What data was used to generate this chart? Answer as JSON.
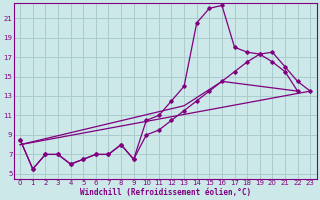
{
  "bg_color": "#cce8e8",
  "grid_color": "#aacccc",
  "line_color": "#800080",
  "xlim": [
    -0.5,
    23.5
  ],
  "ylim": [
    4.5,
    22.5
  ],
  "yticks": [
    5,
    7,
    9,
    11,
    13,
    15,
    17,
    19,
    21
  ],
  "xticks": [
    0,
    1,
    2,
    3,
    4,
    5,
    6,
    7,
    8,
    9,
    10,
    11,
    12,
    13,
    14,
    15,
    16,
    17,
    18,
    19,
    20,
    21,
    22,
    23
  ],
  "xlabel": "Windchill (Refroidissement éolien,°C)",
  "line1_x": [
    0,
    1,
    2,
    3,
    4,
    5,
    6,
    7,
    8,
    9,
    10,
    11,
    12,
    13,
    14,
    15,
    16,
    17,
    18,
    19,
    20,
    21,
    22
  ],
  "line1_y": [
    8.5,
    5.5,
    7.0,
    7.0,
    6.0,
    6.5,
    7.0,
    7.0,
    8.0,
    6.5,
    10.5,
    11.0,
    12.5,
    14.0,
    20.5,
    22.0,
    22.3,
    18.0,
    17.5,
    17.3,
    16.5,
    15.5,
    13.5
  ],
  "line2_x": [
    0,
    1,
    2,
    3,
    4,
    5,
    6,
    7,
    8,
    9,
    10,
    11,
    12,
    13,
    14,
    15,
    16,
    17,
    18,
    19,
    20,
    21,
    22,
    23
  ],
  "line2_y": [
    8.5,
    5.5,
    7.0,
    7.0,
    6.0,
    6.5,
    7.0,
    7.0,
    8.0,
    6.5,
    9.0,
    9.5,
    10.5,
    11.5,
    12.5,
    13.5,
    14.5,
    15.5,
    16.5,
    17.3,
    17.5,
    16.0,
    14.5,
    13.5
  ],
  "line3_x": [
    0,
    23
  ],
  "line3_y": [
    8.0,
    13.5
  ],
  "line4_x": [
    0,
    13,
    16,
    22
  ],
  "line4_y": [
    8.0,
    12.0,
    14.5,
    13.5
  ]
}
